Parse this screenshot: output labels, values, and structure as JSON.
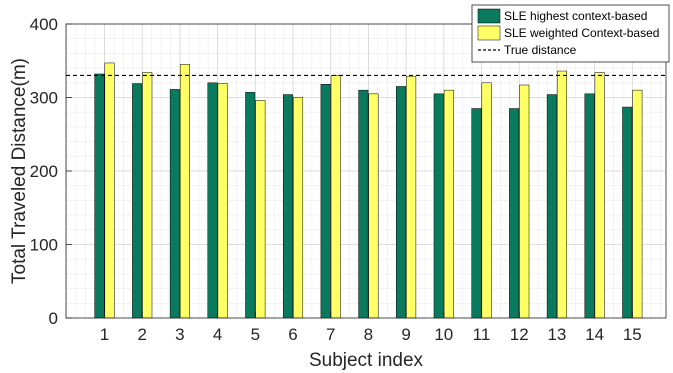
{
  "chart_data": {
    "type": "bar",
    "title": "",
    "xlabel": "Subject index",
    "ylabel": "Total Traveled Distance(m)",
    "ylim": [
      0,
      400
    ],
    "yticks": [
      0,
      100,
      200,
      300,
      400
    ],
    "categories": [
      "1",
      "2",
      "3",
      "4",
      "5",
      "6",
      "7",
      "8",
      "9",
      "10",
      "11",
      "12",
      "13",
      "14",
      "15"
    ],
    "series": [
      {
        "name": "SLE highest context-based",
        "color": "#0a7a5e",
        "values": [
          332,
          319,
          311,
          320,
          307,
          304,
          318,
          310,
          315,
          305,
          285,
          285,
          304,
          305,
          287
        ]
      },
      {
        "name": "SLE weighted Context-based",
        "color": "#ffff66",
        "values": [
          347,
          334,
          345,
          319,
          296,
          300,
          330,
          305,
          329,
          310,
          320,
          317,
          336,
          334,
          310
        ]
      }
    ],
    "reference_line": {
      "name": "True distance",
      "value": 330,
      "color": "#000000",
      "style": "dashed"
    },
    "grid": true,
    "minor_grid": true,
    "legend_position": "top-right"
  }
}
